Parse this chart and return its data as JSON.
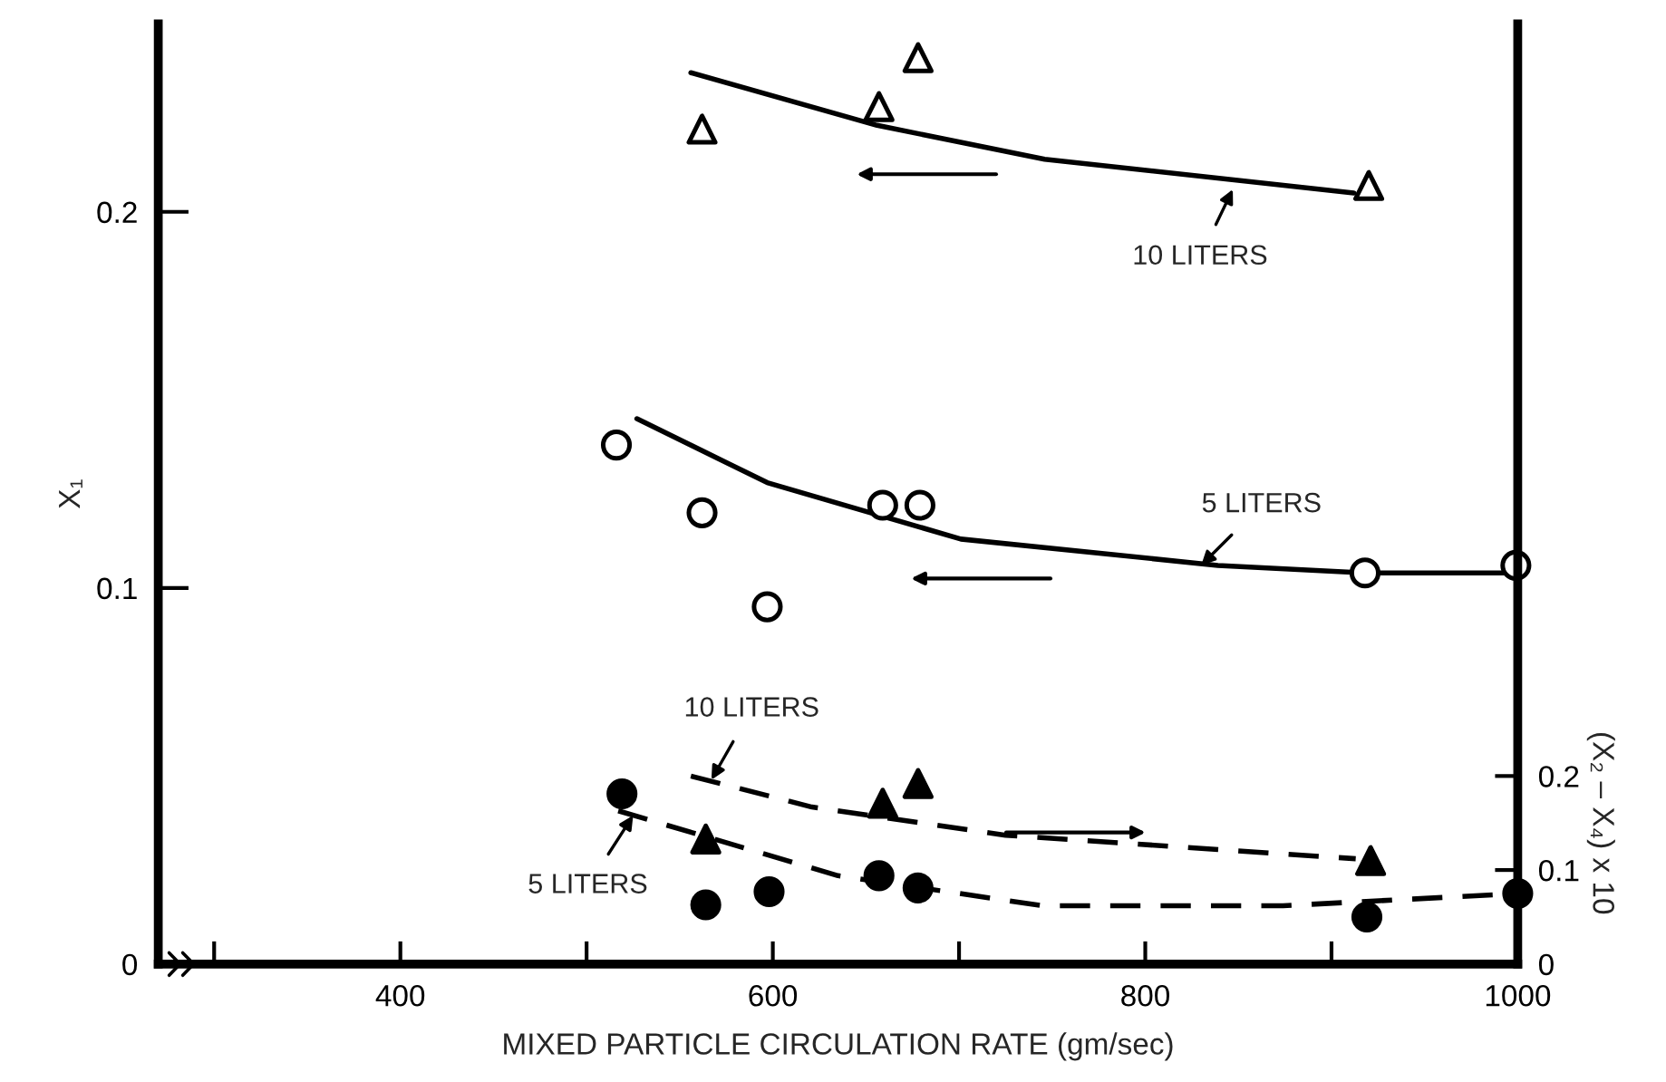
{
  "chart_data": {
    "type": "scatter",
    "xlabel": "MIXED PARTICLE CIRCULATION RATE (gm/sec)",
    "ylabel": "X₁",
    "y2label": "(X₂ – X₄) x 10",
    "xlim": [
      270,
      1000
    ],
    "xticks": [
      {
        "value": 300,
        "label": null
      },
      400,
      {
        "value": 500,
        "label": null
      },
      600,
      {
        "value": 700,
        "label": null
      },
      800,
      {
        "value": 900,
        "label": null
      },
      1000
    ],
    "ylim": [
      0,
      0.25
    ],
    "yticks": [
      0,
      0.1,
      0.2
    ],
    "y2lim": [
      0,
      1.0
    ],
    "y2ticks": [
      0,
      0.1,
      0.2
    ],
    "grid": false,
    "series": [
      {
        "marker": "triangle",
        "color": "#ffffff",
        "x": [
          562,
          657,
          678,
          920
        ],
        "values": [
          0.222,
          0.228,
          0.241,
          0.207
        ]
      },
      {
        "type": "line",
        "marker": "none",
        "line_style": "solid",
        "color": "#000000",
        "x": [
          556,
          656,
          746,
          912
        ],
        "values": [
          0.237,
          0.223,
          0.214,
          0.205
        ]
      },
      {
        "marker": "circle",
        "color": "#ffffff",
        "x": [
          516,
          562,
          597,
          659,
          679,
          918,
          999
        ],
        "values": [
          0.138,
          0.12,
          0.095,
          0.122,
          0.122,
          0.104,
          0.106
        ]
      },
      {
        "type": "line",
        "marker": "none",
        "line_style": "solid",
        "color": "#000000",
        "x": [
          527,
          597,
          701,
          839,
          918,
          999
        ],
        "values": [
          0.145,
          0.128,
          0.113,
          0.106,
          0.104,
          0.104
        ]
      },
      {
        "axis": "y2",
        "marker": "triangle",
        "color": "#000000",
        "x": [
          564,
          659,
          678,
          921
        ],
        "values": [
          0.133,
          0.171,
          0.192,
          0.11
        ]
      },
      {
        "type": "line",
        "axis": "y2",
        "marker": "none",
        "line_style": "dashed",
        "color": "#000000",
        "x": [
          556,
          621,
          725,
          913
        ],
        "values": [
          0.2,
          0.167,
          0.137,
          0.112
        ]
      },
      {
        "axis": "y2",
        "marker": "circle",
        "color": "#000000",
        "x": [
          519,
          564,
          598,
          657,
          678,
          919,
          1000
        ],
        "values": [
          0.181,
          0.063,
          0.077,
          0.094,
          0.081,
          0.05,
          0.075
        ]
      },
      {
        "type": "line",
        "axis": "y2",
        "marker": "none",
        "line_style": "dashed",
        "color": "#000000",
        "x": [
          517,
          635,
          745,
          874,
          1000
        ],
        "values": [
          0.163,
          0.094,
          0.062,
          0.062,
          0.075
        ]
      }
    ],
    "annotations": [
      {
        "text": "10 LITERS",
        "x": 847,
        "y": 0.206
      },
      {
        "text": "5 LITERS",
        "x": 830,
        "y": 0.106
      },
      {
        "text": "10 LITERS",
        "x": 567,
        "y": 0.049
      },
      {
        "text": "5 LITERS",
        "x": 525,
        "y": 0.0395
      }
    ]
  }
}
